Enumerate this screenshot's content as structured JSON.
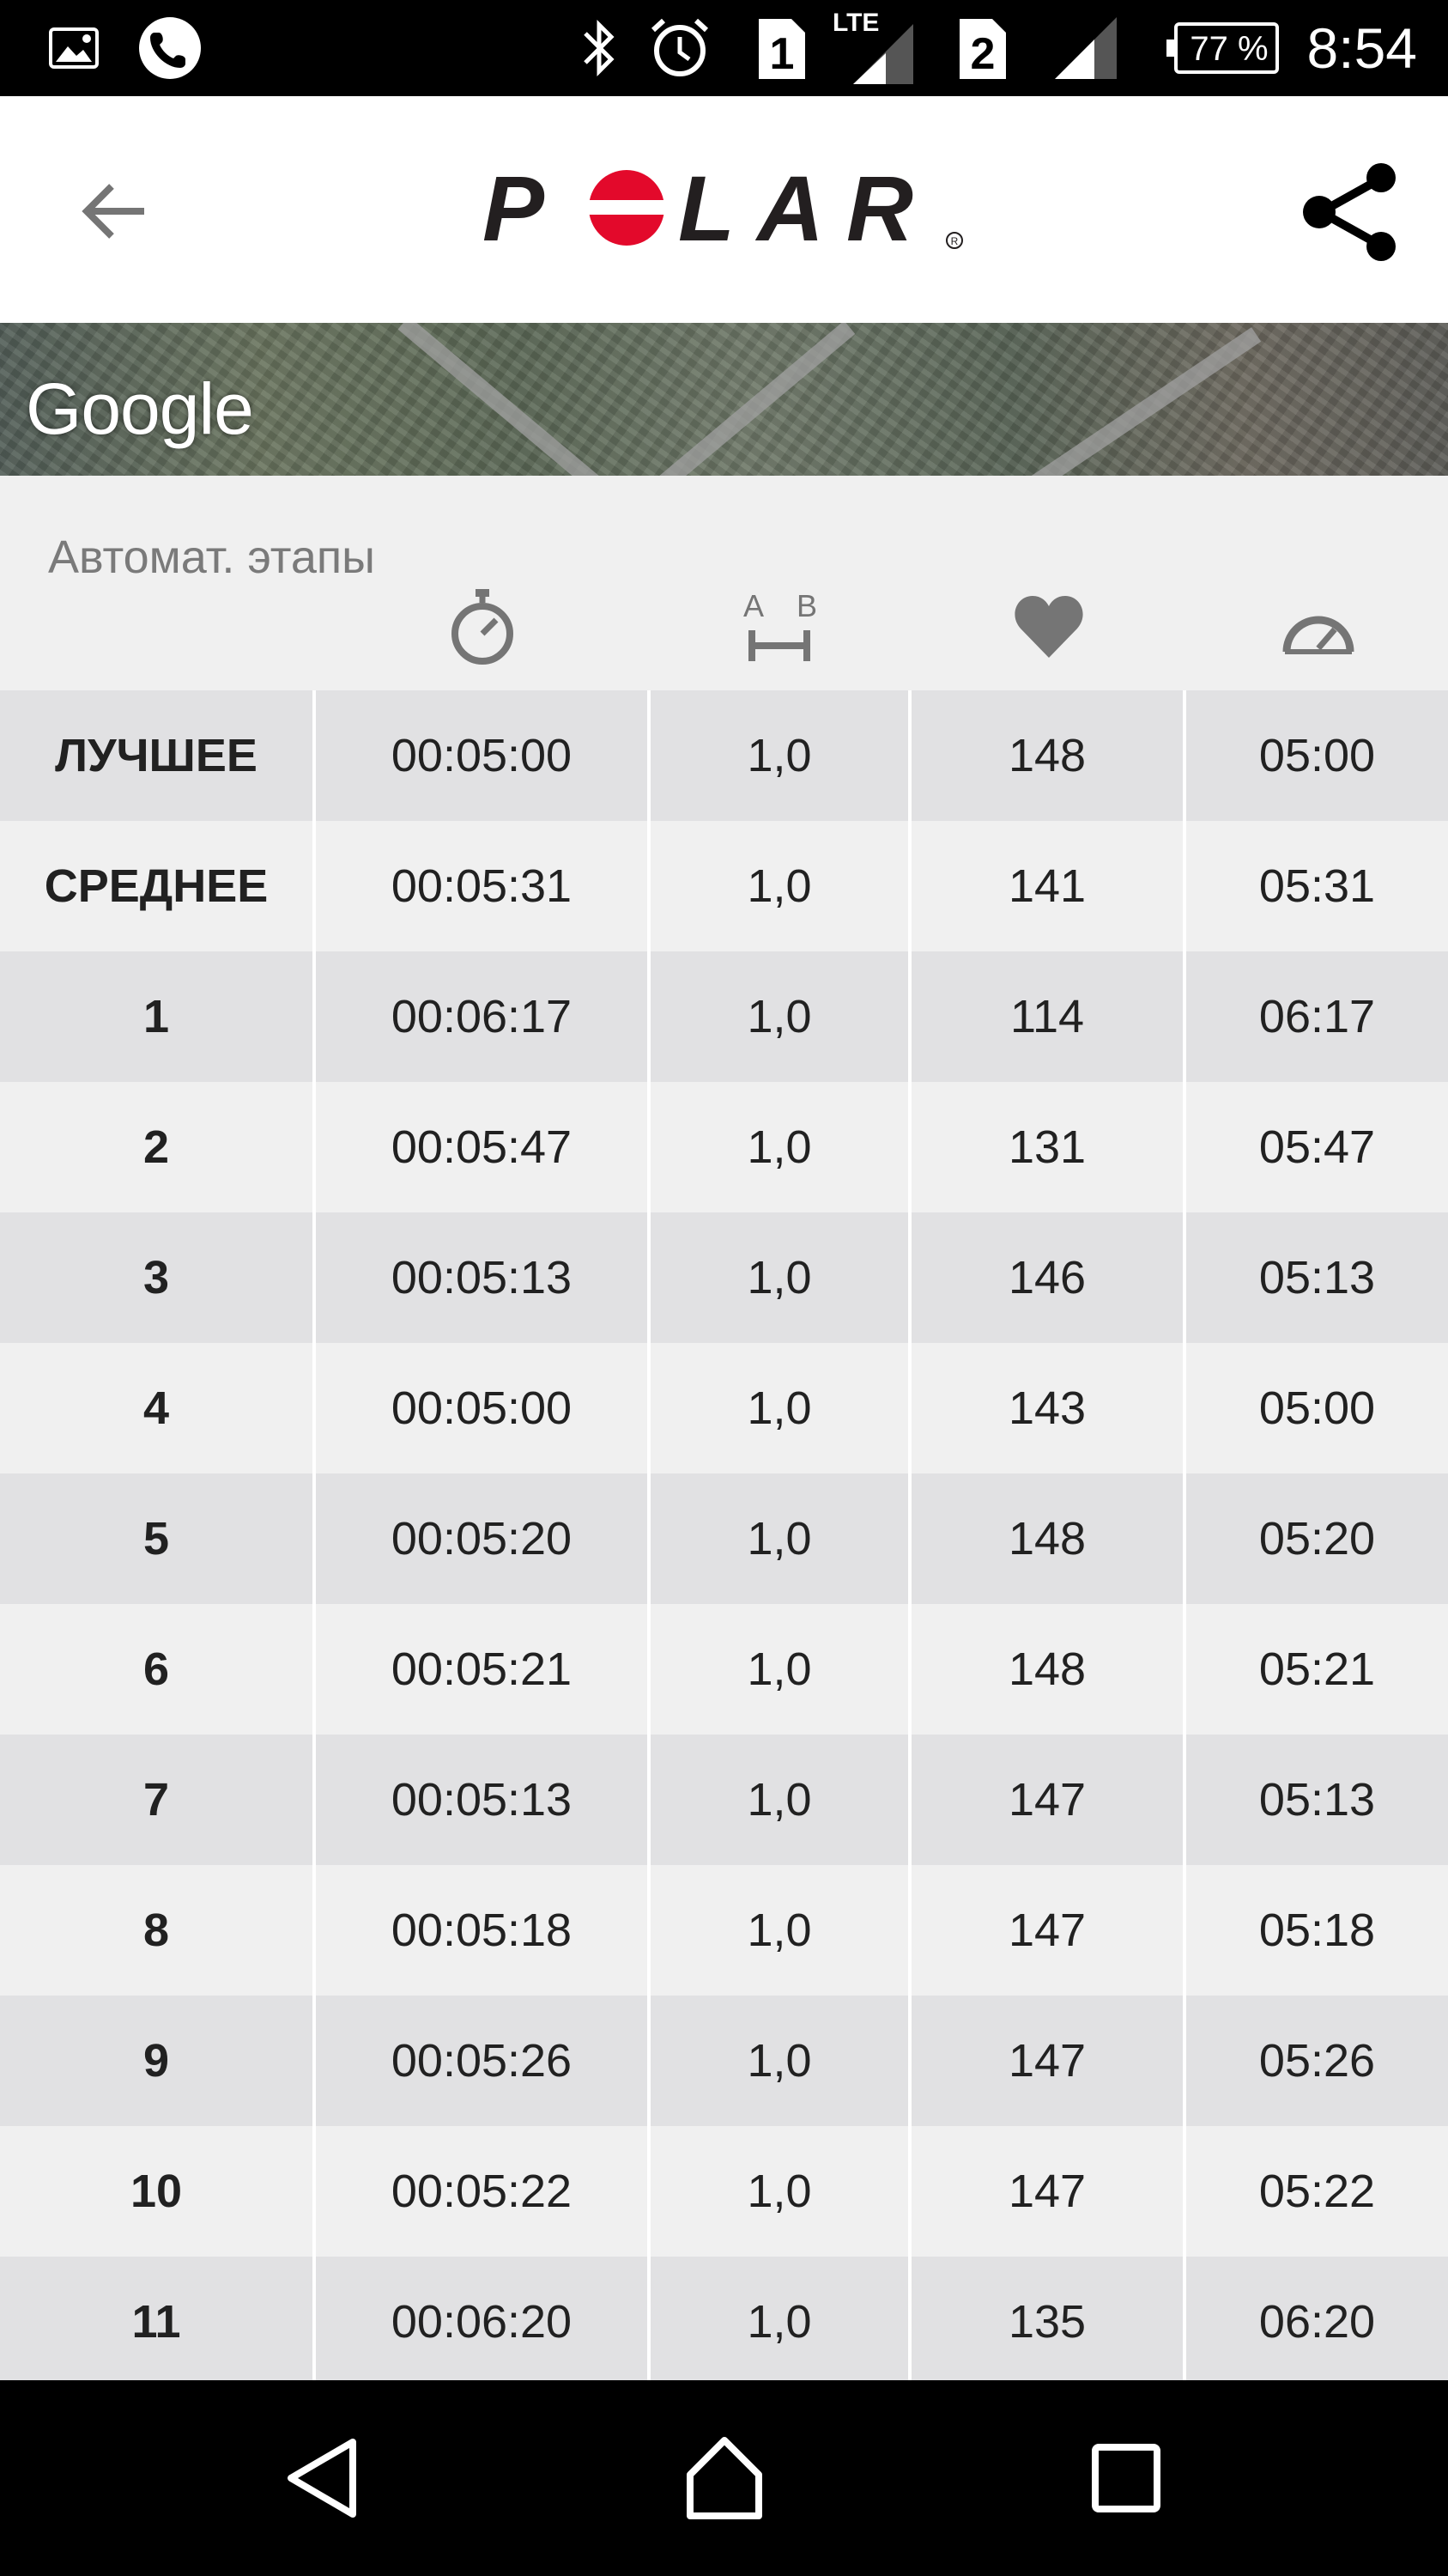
{
  "status_bar": {
    "time": "8:54",
    "battery": "77 %",
    "network_type": "LTE",
    "sim1": "1",
    "sim2": "2",
    "icons": [
      "gallery-icon",
      "phone-icon",
      "bluetooth-icon",
      "alarm-icon",
      "sim1-icon",
      "signal-icon",
      "sim2-icon",
      "signal-icon",
      "battery-icon"
    ]
  },
  "app_bar": {
    "back_icon": "arrow-back-icon",
    "logo": "POLAR",
    "share_icon": "share-icon"
  },
  "map": {
    "attribution": "Google"
  },
  "laps": {
    "title": "Автомат. этапы",
    "column_icons": [
      "stopwatch-icon",
      "distance-icon",
      "heart-icon",
      "speedometer-icon"
    ],
    "rows": [
      {
        "label": "ЛУЧШЕЕ",
        "time": "00:05:00",
        "distance": "1,0",
        "hr": "148",
        "pace": "05:00"
      },
      {
        "label": "СРЕДНЕЕ",
        "time": "00:05:31",
        "distance": "1,0",
        "hr": "141",
        "pace": "05:31"
      },
      {
        "label": "1",
        "time": "00:06:17",
        "distance": "1,0",
        "hr": "114",
        "pace": "06:17"
      },
      {
        "label": "2",
        "time": "00:05:47",
        "distance": "1,0",
        "hr": "131",
        "pace": "05:47"
      },
      {
        "label": "3",
        "time": "00:05:13",
        "distance": "1,0",
        "hr": "146",
        "pace": "05:13"
      },
      {
        "label": "4",
        "time": "00:05:00",
        "distance": "1,0",
        "hr": "143",
        "pace": "05:00"
      },
      {
        "label": "5",
        "time": "00:05:20",
        "distance": "1,0",
        "hr": "148",
        "pace": "05:20"
      },
      {
        "label": "6",
        "time": "00:05:21",
        "distance": "1,0",
        "hr": "148",
        "pace": "05:21"
      },
      {
        "label": "7",
        "time": "00:05:13",
        "distance": "1,0",
        "hr": "147",
        "pace": "05:13"
      },
      {
        "label": "8",
        "time": "00:05:18",
        "distance": "1,0",
        "hr": "147",
        "pace": "05:18"
      },
      {
        "label": "9",
        "time": "00:05:26",
        "distance": "1,0",
        "hr": "147",
        "pace": "05:26"
      },
      {
        "label": "10",
        "time": "00:05:22",
        "distance": "1,0",
        "hr": "147",
        "pace": "05:22"
      },
      {
        "label": "11",
        "time": "00:06:20",
        "distance": "1,0",
        "hr": "135",
        "pace": "06:20"
      }
    ]
  },
  "nav_bar": {
    "icons": [
      "nav-back-icon",
      "nav-home-icon",
      "nav-recents-icon"
    ]
  },
  "colors": {
    "brand_red": "#e3092b",
    "logo_dark": "#231f20"
  }
}
